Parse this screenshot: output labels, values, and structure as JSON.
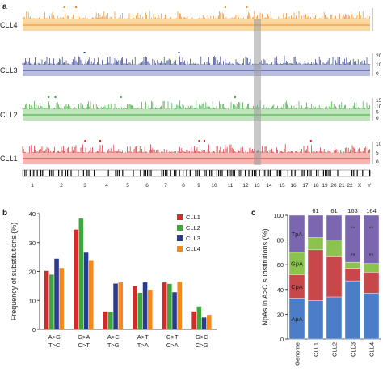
{
  "panels": {
    "a": "a",
    "b": "b",
    "c": "c"
  },
  "panel_a": {
    "tracks": [
      {
        "name": "CLL4",
        "color": "#f28a1e",
        "band": "#fbd7a1",
        "y_ticks": [
          "",
          "",
          ""
        ]
      },
      {
        "name": "CLL3",
        "color": "#2b3b8f",
        "band": "#b9bde0",
        "y_ticks": [
          "20",
          "10",
          "0"
        ]
      },
      {
        "name": "CLL2",
        "color": "#3aa93a",
        "band": "#bfe3bb",
        "y_ticks": [
          "15",
          "10",
          "5",
          "0"
        ]
      },
      {
        "name": "CLL1",
        "color": "#d42a2a",
        "band": "#f7b5b2",
        "y_ticks": [
          "10",
          "5",
          "0"
        ]
      }
    ],
    "chromosomes": [
      "1",
      "2",
      "3",
      "4",
      "5",
      "6",
      "7",
      "8",
      "9",
      "10",
      "11",
      "12",
      "13",
      "14",
      "15",
      "16",
      "17",
      "18",
      "19",
      "20",
      "21",
      "22",
      "X",
      "Y"
    ]
  },
  "chart_data": [
    {
      "type": "bar",
      "panel": "b",
      "ylabel": "Frequency of substitutions (%)",
      "ylim": [
        0,
        40
      ],
      "yticks": [
        0,
        10,
        20,
        30,
        40
      ],
      "categories": [
        [
          "A>G",
          "T>C"
        ],
        [
          "G>A",
          "C>T"
        ],
        [
          "A>C",
          "T>G"
        ],
        [
          "A>T",
          "T>A"
        ],
        [
          "G>T",
          "C>A"
        ],
        [
          "G>C",
          "C>G"
        ]
      ],
      "series": [
        {
          "name": "CLL1",
          "color": "#d42a2a",
          "values": [
            20.2,
            34.5,
            6.2,
            15.0,
            16.2,
            6.2
          ]
        },
        {
          "name": "CLL2",
          "color": "#3aa93a",
          "values": [
            18.9,
            38.3,
            6.1,
            12.6,
            15.7,
            7.9
          ]
        },
        {
          "name": "CLL3",
          "color": "#2b3b8f",
          "values": [
            24.4,
            26.5,
            15.8,
            16.2,
            12.8,
            4.1
          ]
        },
        {
          "name": "CLL4",
          "color": "#f28a1e",
          "values": [
            21.2,
            23.9,
            16.2,
            13.7,
            16.4,
            5.0
          ]
        }
      ],
      "legend": "top-right"
    },
    {
      "type": "bar",
      "stacked": true,
      "panel": "c",
      "ylabel": "NpAs in A>C substitutions (%)",
      "ylim": [
        0,
        100
      ],
      "yticks": [
        0,
        20,
        40,
        60,
        80,
        100
      ],
      "categories": [
        "Genome",
        "CLL1",
        "CLL2",
        "CLL3",
        "CLL4"
      ],
      "top_labels": [
        "",
        "61",
        "61",
        "163",
        "164"
      ],
      "series": [
        {
          "name": "ApA",
          "color": "#4a7ec9",
          "values": [
            33,
            31,
            34,
            47,
            37
          ]
        },
        {
          "name": "CpA",
          "color": "#c8474a",
          "values": [
            19,
            41,
            33,
            10,
            17
          ]
        },
        {
          "name": "GpA",
          "color": "#8cc34f",
          "values": [
            18,
            10,
            13,
            5,
            7
          ]
        },
        {
          "name": "TpA",
          "color": "#7b66b0",
          "values": [
            30,
            18,
            20,
            38,
            39
          ]
        }
      ],
      "markers": [
        {
          "category": "CLL3",
          "label": "**"
        },
        {
          "category": "CLL4",
          "label": "**"
        }
      ]
    }
  ]
}
